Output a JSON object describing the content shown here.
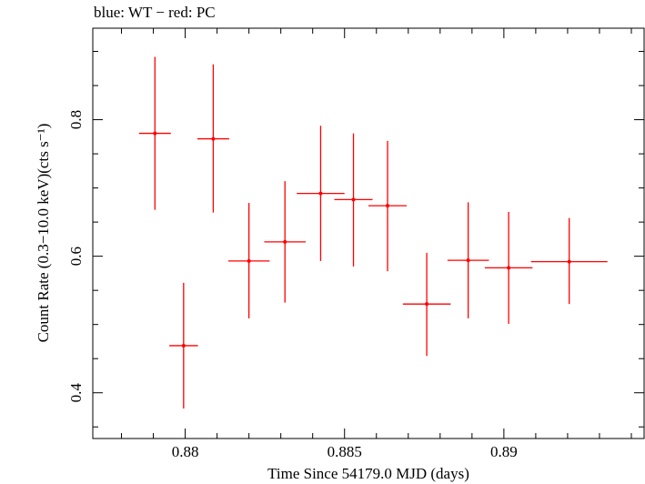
{
  "chart_data": {
    "type": "scatter",
    "title": "blue: WT − red: PC",
    "xlabel": "Time Since 54179.0 MJD (days)",
    "ylabel": "Count Rate (0.3−10.0 keV)(cts s⁻¹)",
    "xlim": [
      0.8771,
      0.8944
    ],
    "ylim": [
      0.333,
      0.934
    ],
    "x_ticks": [
      0.88,
      0.885,
      0.89
    ],
    "x_tick_labels": [
      "0.88",
      "0.885",
      "0.89"
    ],
    "y_ticks": [
      0.4,
      0.6,
      0.8
    ],
    "y_tick_labels": [
      "0.4",
      "0.6",
      "0.8"
    ],
    "grid": false,
    "series": [
      {
        "color": "#ff0000",
        "points": [
          {
            "x": 0.87905,
            "y": 0.78,
            "xerr": 0.0005,
            "y_low": 0.668,
            "y_high": 0.892
          },
          {
            "x": 0.87995,
            "y": 0.469,
            "xerr": 0.00045,
            "y_low": 0.377,
            "y_high": 0.561
          },
          {
            "x": 0.88088,
            "y": 0.772,
            "xerr": 0.0005,
            "y_low": 0.664,
            "y_high": 0.881
          },
          {
            "x": 0.882,
            "y": 0.593,
            "xerr": 0.00065,
            "y_low": 0.509,
            "y_high": 0.678
          },
          {
            "x": 0.88313,
            "y": 0.621,
            "xerr": 0.00065,
            "y_low": 0.532,
            "y_high": 0.71
          },
          {
            "x": 0.88425,
            "y": 0.692,
            "xerr": 0.00075,
            "y_low": 0.593,
            "y_high": 0.791
          },
          {
            "x": 0.88528,
            "y": 0.683,
            "xerr": 0.0006,
            "y_low": 0.585,
            "y_high": 0.78
          },
          {
            "x": 0.88635,
            "y": 0.674,
            "xerr": 0.0006,
            "y_low": 0.578,
            "y_high": 0.769
          },
          {
            "x": 0.88758,
            "y": 0.53,
            "xerr": 0.00075,
            "y_low": 0.454,
            "y_high": 0.605
          },
          {
            "x": 0.88888,
            "y": 0.594,
            "xerr": 0.00065,
            "y_low": 0.509,
            "y_high": 0.679
          },
          {
            "x": 0.89015,
            "y": 0.583,
            "xerr": 0.00075,
            "y_low": 0.501,
            "y_high": 0.665
          },
          {
            "x": 0.89205,
            "y": 0.592,
            "xerr": 0.0012,
            "y_low": 0.53,
            "y_high": 0.656
          }
        ]
      }
    ]
  }
}
